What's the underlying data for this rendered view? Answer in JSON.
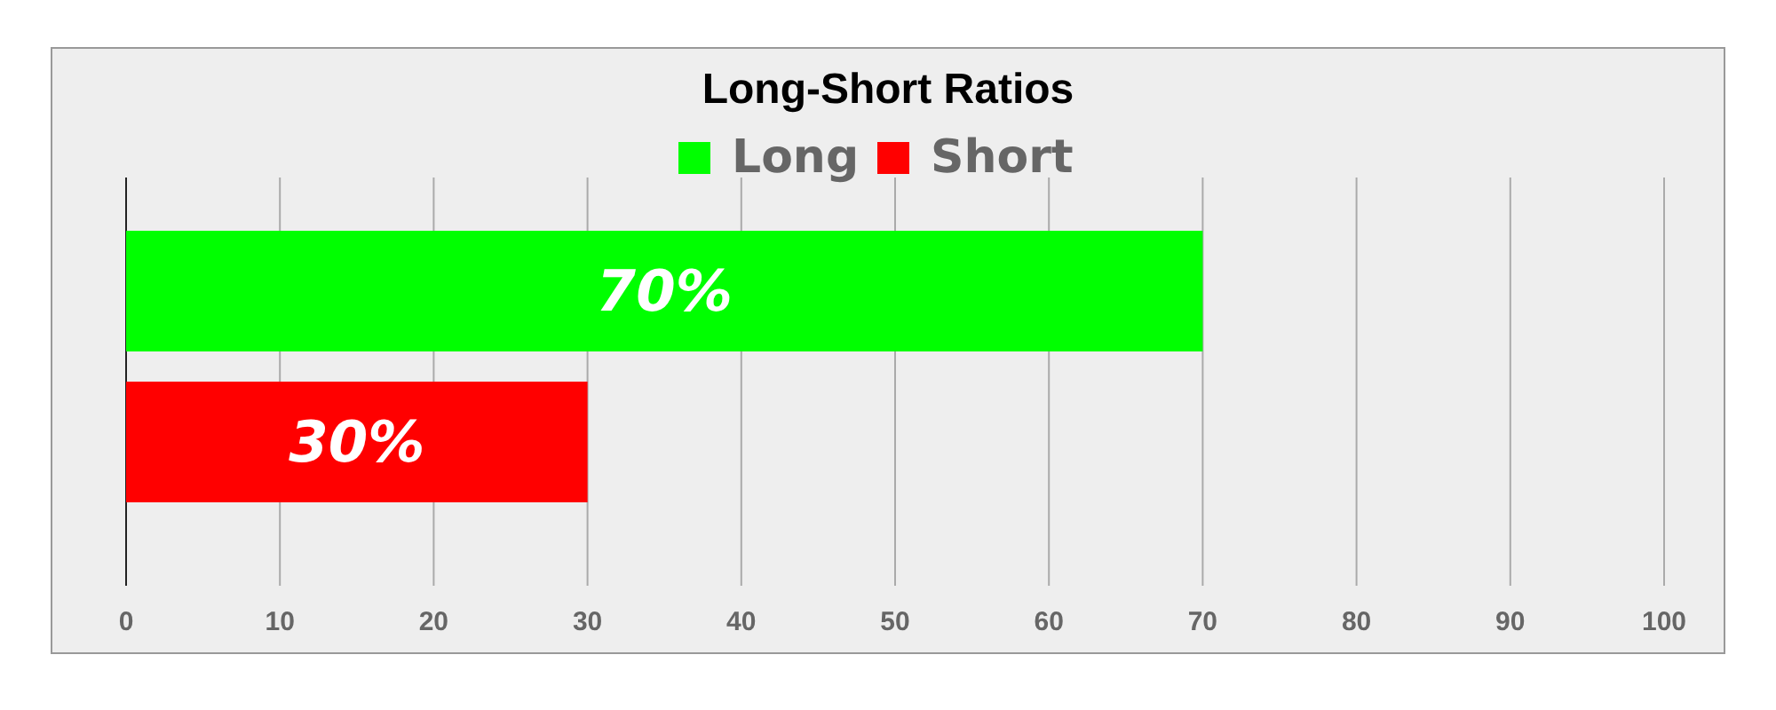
{
  "chart_data": {
    "type": "bar",
    "orientation": "horizontal",
    "title": "Long-Short Ratios",
    "categories": [
      null
    ],
    "series": [
      {
        "name": "Long",
        "color": "#00ff00",
        "values": [
          70
        ],
        "value_labels": [
          "70%"
        ]
      },
      {
        "name": "Short",
        "color": "#ff0000",
        "values": [
          30
        ],
        "value_labels": [
          "30%"
        ]
      }
    ],
    "xlim": [
      0,
      100
    ],
    "xticks": [
      0,
      10,
      20,
      30,
      40,
      50,
      60,
      70,
      80,
      90,
      100
    ],
    "grid": "x",
    "legend": "top"
  }
}
